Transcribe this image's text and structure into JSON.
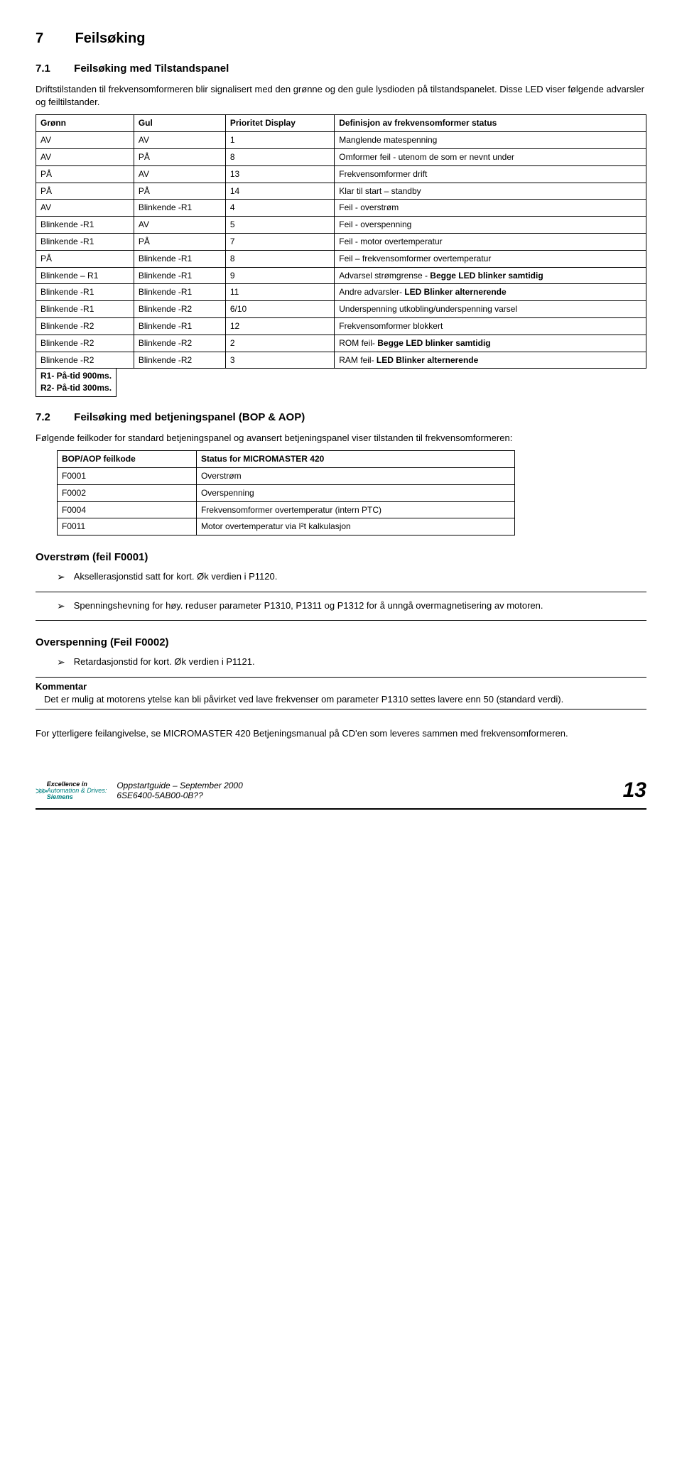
{
  "heading": {
    "num": "7",
    "title": "Feilsøking"
  },
  "sec71": {
    "num": "7.1",
    "title": "Feilsøking med Tilstandspanel",
    "intro": "Driftstilstanden til frekvensomformeren blir signalisert med den grønne og den gule lysdioden på tilstandspanelet. Disse LED viser følgende advarsler og feiltilstander."
  },
  "status_table": {
    "headers": [
      "Grønn",
      "Gul",
      "Prioritet Display",
      "Definisjon av frekvensomformer status"
    ],
    "rows": [
      [
        "AV",
        "AV",
        "1",
        "Manglende matespenning"
      ],
      [
        "AV",
        "PÅ",
        "8",
        "Omformer feil - utenom de som er nevnt under"
      ],
      [
        "PÅ",
        "AV",
        "13",
        "Frekvensomformer drift"
      ],
      [
        "PÅ",
        "PÅ",
        "14",
        "Klar til start – standby"
      ],
      [
        "AV",
        "Blinkende -R1",
        "4",
        "Feil - overstrøm"
      ],
      [
        "Blinkende -R1",
        "AV",
        "5",
        "Feil - overspenning"
      ],
      [
        "Blinkende -R1",
        "PÅ",
        "7",
        "Feil - motor overtemperatur"
      ],
      [
        "PÅ",
        "Blinkende -R1",
        "8",
        "Feil – frekvensomformer overtemperatur"
      ],
      [
        "Blinkende – R1",
        "Blinkende -R1",
        "9",
        "Advarsel strømgrense - Begge LED blinker samtidig"
      ],
      [
        "Blinkende -R1",
        "Blinkende -R1",
        "11",
        "Andre advarsler- LED Blinker alternerende"
      ],
      [
        "Blinkende -R1",
        "Blinkende -R2",
        "6/10",
        "Underspenning utkobling/underspenning varsel"
      ],
      [
        "Blinkende -R2",
        "Blinkende -R1",
        "12",
        "Frekvensomformer blokkert"
      ],
      [
        "Blinkende -R2",
        "Blinkende -R2",
        "2",
        "ROM feil- Begge LED blinker samtidig"
      ],
      [
        "Blinkende -R2",
        "Blinkende -R2",
        "3",
        "RAM feil- LED Blinker alternerende"
      ]
    ],
    "footnote1": "R1- På-tid 900ms.",
    "footnote2": "R2- På-tid 300ms."
  },
  "sec72": {
    "num": "7.2",
    "title": "Feilsøking med betjeningspanel (BOP & AOP)",
    "intro": "Følgende feilkoder for standard betjeningspanel og avansert betjeningspanel viser tilstanden til frekvensomformeren:"
  },
  "feilkode_table": {
    "headers": [
      "BOP/AOP feilkode",
      "Status for MICROMASTER 420"
    ],
    "rows": [
      [
        "F0001",
        "Overstrøm"
      ],
      [
        "F0002",
        "Overspenning"
      ],
      [
        "F0004",
        "Frekvensomformer overtemperatur (intern PTC)"
      ],
      [
        "F0011",
        "Motor overtemperatur via I²t kalkulasjon"
      ]
    ]
  },
  "overstrom": {
    "title": "Overstrøm (feil F0001)",
    "b1": "Aksellerasjonstid satt for kort. Øk verdien i P1120.",
    "b2": "Spenningshevning for høy. reduser parameter P1310, P1311 og P1312 for å unngå overmagnetisering av motoren."
  },
  "overspenning": {
    "title": "Overspenning (Feil F0002)",
    "b1": "Retardasjonstid for kort. Øk verdien i P1121."
  },
  "kommentar": {
    "title": "Kommentar",
    "body": "Det er mulig at motorens ytelse kan bli påvirket ved lave frekvenser om parameter P1310 settes lavere enn 50 (standard verdi)."
  },
  "closing": "For ytterligere feilangivelse, se MICROMASTER 420 Betjeningsmanual på CD'en som leveres sammen med frekvensomformeren.",
  "footer": {
    "line1": "Oppstartguide – September 2000",
    "line2": "6SE6400-5AB00-0B??",
    "page": "13",
    "logo_excellence": "Excellence in",
    "logo_ad": "Automation & Drives:",
    "logo_siemens": "Siemens"
  }
}
